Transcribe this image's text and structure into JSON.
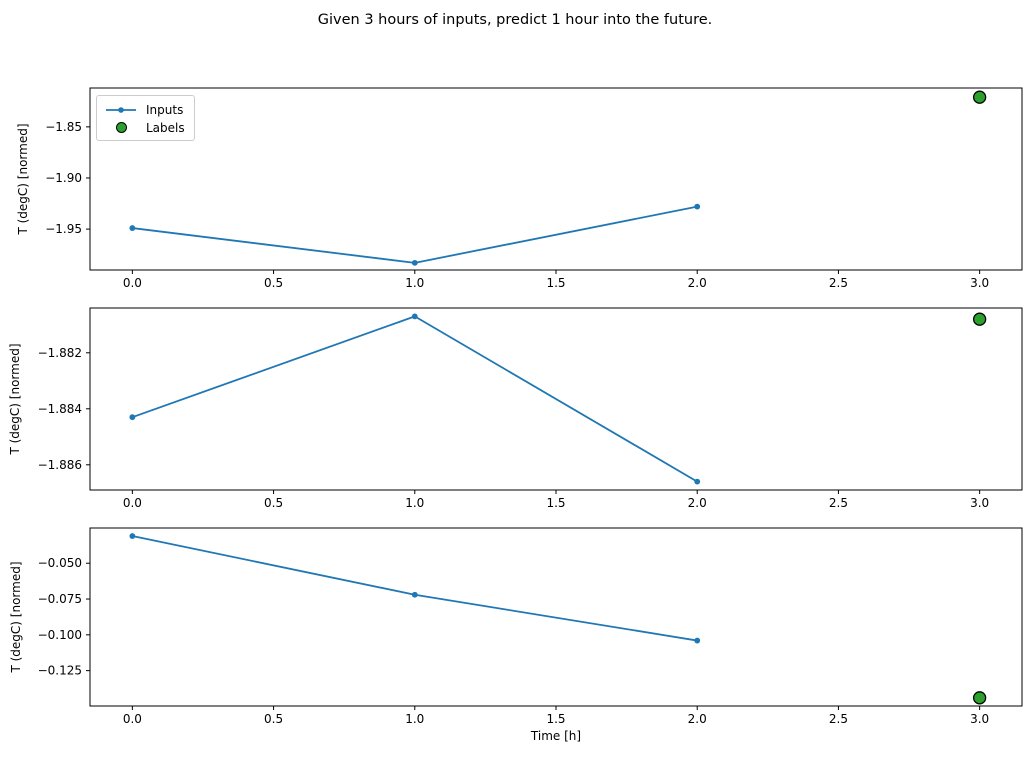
{
  "figure": {
    "title": "Given 3 hours of inputs, predict 1 hour into the future.",
    "xlabel": "Time [h]"
  },
  "legend": {
    "position": "upper left of subplot 1",
    "items": [
      {
        "label": "Inputs",
        "marker": "blue line with small circle marker"
      },
      {
        "label": "Labels",
        "marker": "green circle with black edge"
      }
    ]
  },
  "colors": {
    "inputs_line": "#1f77b4",
    "labels_fill": "#2ca02c",
    "labels_edge": "#000000",
    "axis": "#000000",
    "text": "#000000",
    "legend_border": "#cccccc",
    "background": "#ffffff"
  },
  "chart_data": [
    {
      "type": "line",
      "ylabel": "T (degC) [normed]",
      "xlabel": "",
      "xlim": [
        -0.15,
        3.15
      ],
      "ylim": [
        -1.99,
        -1.812
      ],
      "xtick_vals": [
        0.0,
        0.5,
        1.0,
        1.5,
        2.0,
        2.5,
        3.0
      ],
      "xtick_labels": [
        "0.0",
        "0.5",
        "1.0",
        "1.5",
        "2.0",
        "2.5",
        "3.0"
      ],
      "ytick_vals": [
        -1.85,
        -1.9,
        -1.95
      ],
      "ytick_labels": [
        "−1.85",
        "−1.90",
        "−1.95"
      ],
      "grid": false,
      "legend_visible": true,
      "series": [
        {
          "name": "Inputs",
          "kind": "line+marker",
          "x": [
            0,
            1,
            2
          ],
          "values": [
            -1.949,
            -1.983,
            -1.928
          ]
        },
        {
          "name": "Labels",
          "kind": "point",
          "x": [
            3
          ],
          "values": [
            -1.821
          ]
        }
      ]
    },
    {
      "type": "line",
      "ylabel": "T (degC) [normed]",
      "xlabel": "",
      "xlim": [
        -0.15,
        3.15
      ],
      "ylim": [
        -1.8869,
        -1.8804
      ],
      "xtick_vals": [
        0.0,
        0.5,
        1.0,
        1.5,
        2.0,
        2.5,
        3.0
      ],
      "xtick_labels": [
        "0.0",
        "0.5",
        "1.0",
        "1.5",
        "2.0",
        "2.5",
        "3.0"
      ],
      "ytick_vals": [
        -1.882,
        -1.884,
        -1.886
      ],
      "ytick_labels": [
        "−1.882",
        "−1.884",
        "−1.886"
      ],
      "grid": false,
      "legend_visible": false,
      "series": [
        {
          "name": "Inputs",
          "kind": "line+marker",
          "x": [
            0,
            1,
            2
          ],
          "values": [
            -1.8843,
            -1.8807,
            -1.8866
          ]
        },
        {
          "name": "Labels",
          "kind": "point",
          "x": [
            3
          ],
          "values": [
            -1.8808
          ]
        }
      ]
    },
    {
      "type": "line",
      "ylabel": "T (degC) [normed]",
      "xlabel": "Time [h]",
      "xlim": [
        -0.15,
        3.15
      ],
      "ylim": [
        -0.1497,
        -0.0254
      ],
      "xtick_vals": [
        0.0,
        0.5,
        1.0,
        1.5,
        2.0,
        2.5,
        3.0
      ],
      "xtick_labels": [
        "0.0",
        "0.5",
        "1.0",
        "1.5",
        "2.0",
        "2.5",
        "3.0"
      ],
      "ytick_vals": [
        -0.05,
        -0.075,
        -0.1,
        -0.125
      ],
      "ytick_labels": [
        "−0.050",
        "−0.075",
        "−0.100",
        "−0.125"
      ],
      "grid": false,
      "legend_visible": false,
      "series": [
        {
          "name": "Inputs",
          "kind": "line+marker",
          "x": [
            0,
            1,
            2
          ],
          "values": [
            -0.031,
            -0.072,
            -0.104
          ]
        },
        {
          "name": "Labels",
          "kind": "point",
          "x": [
            3
          ],
          "values": [
            -0.144
          ]
        }
      ]
    }
  ]
}
